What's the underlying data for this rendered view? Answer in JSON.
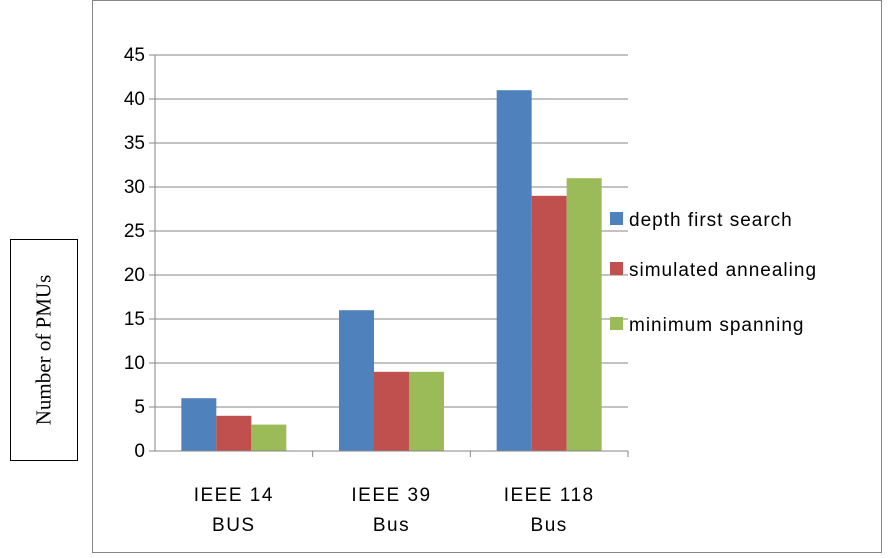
{
  "chart_data": {
    "type": "bar",
    "categories": [
      [
        "IEEE 14",
        "BUS"
      ],
      [
        "IEEE 39",
        "Bus"
      ],
      [
        "IEEE 118",
        "Bus"
      ]
    ],
    "series": [
      {
        "name": "depth first search",
        "color": "#4f81bd",
        "values": [
          6,
          16,
          41
        ]
      },
      {
        "name": "simulated annealing",
        "color": "#c0504d",
        "values": [
          4,
          9,
          29
        ]
      },
      {
        "name": "minimum spanning",
        "color": "#9bbb59",
        "values": [
          3,
          9,
          31
        ]
      }
    ],
    "ylabel": "Number of PMUs",
    "xlabel": "",
    "title": "",
    "ylim": [
      0,
      45
    ],
    "ytick_step": 5,
    "grid": true,
    "legend_position": "right"
  }
}
